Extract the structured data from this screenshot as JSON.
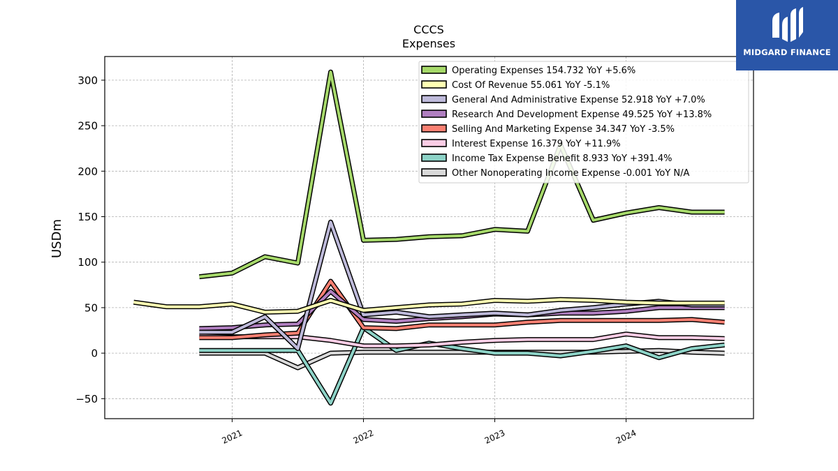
{
  "brand": {
    "name": "MIDGARD FINANCE",
    "bg_color": "#2a56a8",
    "icon": "midgard-logo-icon"
  },
  "chart_data": {
    "type": "line",
    "title": "CCCS",
    "subtitle": "Expenses",
    "xlabel": "",
    "ylabel": "USDm",
    "ylim": [
      -72,
      326
    ],
    "yticks": [
      -50,
      0,
      50,
      100,
      150,
      200,
      250,
      300
    ],
    "ytick_labels": [
      "−50",
      "0",
      "50",
      "100",
      "150",
      "200",
      "250",
      "300"
    ],
    "xlim": [
      2020.03,
      2024.97
    ],
    "xticks": [
      2021,
      2022,
      2023,
      2024
    ],
    "xtick_labels": [
      "2021",
      "2022",
      "2023",
      "2024"
    ],
    "grid": true,
    "legend_position": "top-right",
    "series": [
      {
        "name": "Operating Expenses",
        "legend": "Operating Expenses  154.732 YoY +5.6%",
        "color": "#a6d96a",
        "x": [
          2020.75,
          2021.0,
          2021.25,
          2021.5,
          2021.75,
          2022.0,
          2022.25,
          2022.5,
          2022.75,
          2023.0,
          2023.25,
          2023.5,
          2023.75,
          2024.0,
          2024.25,
          2024.5,
          2024.75
        ],
        "values": [
          84,
          88,
          106,
          99,
          309,
          124,
          125,
          128,
          129,
          136,
          134,
          229,
          146,
          154,
          160,
          155,
          155
        ]
      },
      {
        "name": "Cost Of Revenue",
        "legend": "Cost Of Revenue  55.061 YoY -5.1%",
        "color": "#ffffb3",
        "x": [
          2020.25,
          2020.5,
          2020.75,
          2021.0,
          2021.25,
          2021.5,
          2021.75,
          2022.0,
          2022.25,
          2022.5,
          2022.75,
          2023.0,
          2023.25,
          2023.5,
          2023.75,
          2024.0,
          2024.25,
          2024.5,
          2024.75
        ],
        "values": [
          56,
          51,
          51,
          54,
          45,
          46,
          58,
          47,
          50,
          53,
          54,
          58,
          57,
          59,
          58,
          56,
          55,
          55,
          55
        ]
      },
      {
        "name": "General And Administrative Expense",
        "legend": "General And Administrative Expense  52.918 YoY +7.0%",
        "color": "#bebada",
        "x": [
          2020.75,
          2021.0,
          2021.25,
          2021.5,
          2021.75,
          2022.0,
          2022.25,
          2022.5,
          2022.75,
          2023.0,
          2023.25,
          2023.5,
          2023.75,
          2024.0,
          2024.25,
          2024.5,
          2024.75
        ],
        "values": [
          23,
          23,
          40,
          5,
          144,
          42,
          45,
          40,
          42,
          44,
          42,
          47,
          50,
          54,
          57,
          53,
          53
        ]
      },
      {
        "name": "Research And Development Expense",
        "legend": "Research And Development Expense  49.525 YoY +13.8%",
        "color": "#b07fc0",
        "x": [
          2020.75,
          2021.0,
          2021.25,
          2021.5,
          2021.75,
          2022.0,
          2022.25,
          2022.5,
          2022.75,
          2023.0,
          2023.25,
          2023.5,
          2023.75,
          2024.0,
          2024.25,
          2024.5,
          2024.75
        ],
        "values": [
          27,
          28,
          31,
          32,
          68,
          37,
          35,
          38,
          40,
          43,
          42,
          44,
          44,
          46,
          50,
          50,
          50
        ]
      },
      {
        "name": "Selling And Marketing Expense",
        "legend": "Selling And Marketing Expense  34.347 YoY -3.5%",
        "color": "#fb8072",
        "x": [
          2020.75,
          2021.0,
          2021.25,
          2021.5,
          2021.75,
          2022.0,
          2022.25,
          2022.5,
          2022.75,
          2023.0,
          2023.25,
          2023.5,
          2023.75,
          2024.0,
          2024.25,
          2024.5,
          2024.75
        ],
        "values": [
          17,
          17,
          20,
          22,
          79,
          28,
          27,
          31,
          31,
          31,
          34,
          36,
          36,
          36,
          36,
          37,
          34
        ]
      },
      {
        "name": "Interest Expense",
        "legend": "Interest Expense  16.379 YoY +11.9%",
        "color": "#fccde5",
        "x": [
          2020.75,
          2021.0,
          2021.25,
          2021.5,
          2021.75,
          2022.0,
          2022.25,
          2022.5,
          2022.75,
          2023.0,
          2023.25,
          2023.5,
          2023.75,
          2024.0,
          2024.25,
          2024.5,
          2024.75
        ],
        "values": [
          19,
          18,
          18,
          18,
          14,
          8,
          8,
          9,
          12,
          14,
          15,
          15,
          15,
          21,
          17,
          17,
          16
        ]
      },
      {
        "name": "Income Tax Expense Benefit",
        "legend": "Income Tax Expense Benefit  8.933 YoY +391.4%",
        "color": "#8dd3c7",
        "x": [
          2020.75,
          2021.0,
          2021.25,
          2021.5,
          2021.75,
          2022.0,
          2022.25,
          2022.5,
          2022.75,
          2023.0,
          2023.25,
          2023.5,
          2023.75,
          2024.0,
          2024.25,
          2024.5,
          2024.75
        ],
        "values": [
          3,
          3,
          3,
          3,
          -55,
          28,
          3,
          11,
          5,
          0,
          0,
          -3,
          2,
          8,
          -5,
          5,
          9
        ]
      },
      {
        "name": "Other Nonoperating Income Expense",
        "legend": "Other Nonoperating Income Expense  -0.001 YoY N/A",
        "color": "#d9d9d9",
        "x": [
          2020.75,
          2021.0,
          2021.25,
          2021.5,
          2021.75,
          2022.0,
          2022.25,
          2022.5,
          2022.75,
          2023.0,
          2023.25,
          2023.5,
          2023.75,
          2024.0,
          2024.25,
          2024.5,
          2024.75
        ],
        "values": [
          0,
          0,
          0,
          -16,
          0,
          1,
          1,
          1,
          1,
          1,
          1,
          1,
          1,
          2,
          3,
          1,
          0
        ]
      }
    ]
  }
}
